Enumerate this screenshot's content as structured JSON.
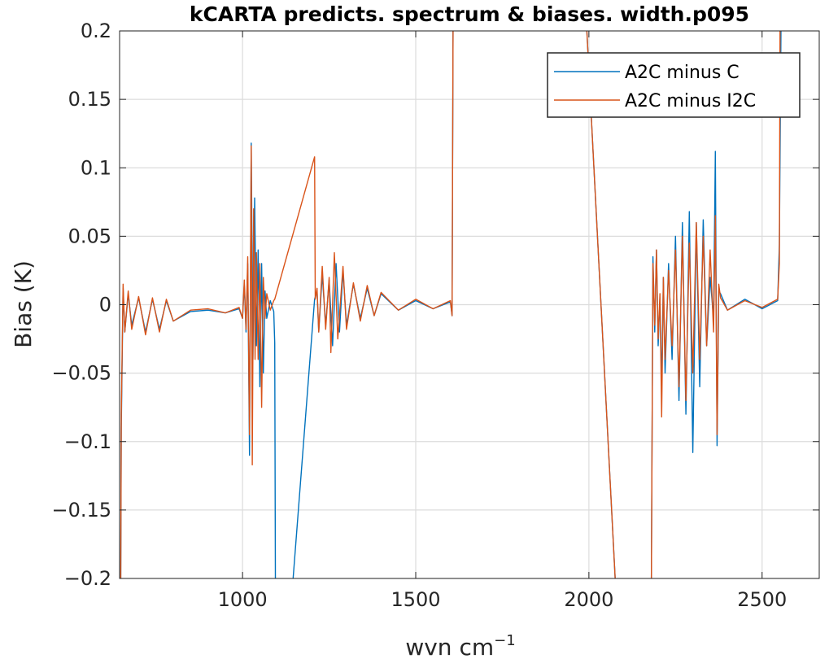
{
  "chart_data": {
    "type": "line",
    "title": "kCARTA predicts. spectrum & biases. width.p095",
    "xlabel_main": "wvn cm",
    "xlabel_sup": "−1",
    "ylabel": "Bias (K)",
    "xlim": [
      645,
      2665
    ],
    "ylim": [
      -0.2,
      0.2
    ],
    "xticks": [
      1000,
      1500,
      2000,
      2500
    ],
    "xtick_labels": [
      "1000",
      "1500",
      "2000",
      "2500"
    ],
    "yticks": [
      -0.2,
      -0.15,
      -0.1,
      -0.05,
      0,
      0.05,
      0.1,
      0.15,
      0.2
    ],
    "ytick_labels": [
      "−0.2",
      "−0.15",
      "−0.1",
      "−0.05",
      "0",
      "0.05",
      "0.1",
      "0.15",
      "0.2"
    ],
    "grid": true,
    "legend_position": "top-right",
    "series": [
      {
        "name": "A2C minus C",
        "color": "#0072BD",
        "points": [
          [
            648,
            -0.22
          ],
          [
            650,
            -0.09
          ],
          [
            655,
            0.012
          ],
          [
            660,
            -0.02
          ],
          [
            670,
            0.008
          ],
          [
            680,
            -0.015
          ],
          [
            700,
            0.005
          ],
          [
            720,
            -0.02
          ],
          [
            740,
            0.004
          ],
          [
            760,
            -0.018
          ],
          [
            780,
            0.003
          ],
          [
            800,
            -0.012
          ],
          [
            850,
            -0.005
          ],
          [
            900,
            -0.004
          ],
          [
            950,
            -0.006
          ],
          [
            990,
            -0.003
          ],
          [
            1000,
            -0.01
          ],
          [
            1005,
            0.015
          ],
          [
            1010,
            -0.02
          ],
          [
            1015,
            0.03
          ],
          [
            1020,
            -0.11
          ],
          [
            1025,
            0.118
          ],
          [
            1030,
            -0.04
          ],
          [
            1035,
            0.078
          ],
          [
            1040,
            -0.03
          ],
          [
            1045,
            0.04
          ],
          [
            1050,
            -0.06
          ],
          [
            1055,
            0.03
          ],
          [
            1060,
            -0.05
          ],
          [
            1065,
            0.01
          ],
          [
            1070,
            -0.01
          ],
          [
            1080,
            0.003
          ],
          [
            1090,
            -0.005
          ],
          [
            1093,
            -0.028
          ],
          [
            1095,
            -0.22
          ],
          [
            1140,
            -0.22
          ],
          [
            1208,
            0.004
          ],
          [
            1215,
            0.01
          ],
          [
            1220,
            -0.02
          ],
          [
            1230,
            0.022
          ],
          [
            1240,
            -0.015
          ],
          [
            1250,
            0.018
          ],
          [
            1260,
            -0.03
          ],
          [
            1270,
            0.03
          ],
          [
            1280,
            -0.02
          ],
          [
            1290,
            0.025
          ],
          [
            1300,
            -0.015
          ],
          [
            1320,
            0.015
          ],
          [
            1340,
            -0.01
          ],
          [
            1360,
            0.012
          ],
          [
            1380,
            -0.008
          ],
          [
            1400,
            0.008
          ],
          [
            1450,
            -0.004
          ],
          [
            1500,
            0.003
          ],
          [
            1550,
            -0.003
          ],
          [
            1600,
            0.002
          ],
          [
            1605,
            -0.008
          ],
          [
            1608,
            0.22
          ],
          [
            1990,
            0.22
          ],
          [
            2080,
            -0.22
          ],
          [
            2180,
            -0.22
          ],
          [
            2185,
            0.035
          ],
          [
            2190,
            -0.02
          ],
          [
            2195,
            0.04
          ],
          [
            2200,
            -0.03
          ],
          [
            2205,
            0.005
          ],
          [
            2210,
            -0.06
          ],
          [
            2215,
            0.02
          ],
          [
            2220,
            -0.05
          ],
          [
            2230,
            0.03
          ],
          [
            2240,
            -0.04
          ],
          [
            2250,
            0.05
          ],
          [
            2260,
            -0.07
          ],
          [
            2270,
            0.06
          ],
          [
            2280,
            -0.08
          ],
          [
            2290,
            0.068
          ],
          [
            2300,
            -0.108
          ],
          [
            2310,
            0.06
          ],
          [
            2320,
            -0.06
          ],
          [
            2330,
            0.062
          ],
          [
            2340,
            -0.03
          ],
          [
            2350,
            0.02
          ],
          [
            2360,
            -0.01
          ],
          [
            2365,
            0.112
          ],
          [
            2370,
            -0.103
          ],
          [
            2375,
            0.01
          ],
          [
            2380,
            0.008
          ],
          [
            2400,
            -0.004
          ],
          [
            2450,
            0.004
          ],
          [
            2500,
            -0.003
          ],
          [
            2545,
            0.003
          ],
          [
            2550,
            0.044
          ],
          [
            2555,
            0.22
          ]
        ]
      },
      {
        "name": "A2C minus I2C",
        "color": "#D95319",
        "points": [
          [
            648,
            -0.22
          ],
          [
            650,
            -0.08
          ],
          [
            655,
            0.015
          ],
          [
            660,
            -0.02
          ],
          [
            670,
            0.01
          ],
          [
            680,
            -0.018
          ],
          [
            700,
            0.006
          ],
          [
            720,
            -0.022
          ],
          [
            740,
            0.005
          ],
          [
            760,
            -0.02
          ],
          [
            780,
            0.004
          ],
          [
            800,
            -0.012
          ],
          [
            850,
            -0.004
          ],
          [
            900,
            -0.003
          ],
          [
            950,
            -0.006
          ],
          [
            990,
            -0.002
          ],
          [
            1000,
            -0.01
          ],
          [
            1005,
            0.018
          ],
          [
            1010,
            -0.018
          ],
          [
            1015,
            0.035
          ],
          [
            1020,
            -0.095
          ],
          [
            1025,
            0.116
          ],
          [
            1028,
            -0.117
          ],
          [
            1032,
            0.07
          ],
          [
            1036,
            -0.04
          ],
          [
            1040,
            0.038
          ],
          [
            1045,
            -0.04
          ],
          [
            1050,
            0.03
          ],
          [
            1055,
            -0.075
          ],
          [
            1060,
            0.02
          ],
          [
            1065,
            -0.01
          ],
          [
            1070,
            0.008
          ],
          [
            1080,
            -0.004
          ],
          [
            1090,
            0.003
          ],
          [
            1093,
            0.004
          ],
          [
            1208,
            0.108
          ],
          [
            1210,
            0.004
          ],
          [
            1215,
            0.012
          ],
          [
            1220,
            -0.02
          ],
          [
            1230,
            0.028
          ],
          [
            1240,
            -0.018
          ],
          [
            1250,
            0.02
          ],
          [
            1255,
            -0.035
          ],
          [
            1265,
            0.038
          ],
          [
            1275,
            -0.025
          ],
          [
            1290,
            0.028
          ],
          [
            1300,
            -0.018
          ],
          [
            1320,
            0.016
          ],
          [
            1340,
            -0.012
          ],
          [
            1360,
            0.014
          ],
          [
            1380,
            -0.008
          ],
          [
            1400,
            0.009
          ],
          [
            1450,
            -0.004
          ],
          [
            1500,
            0.004
          ],
          [
            1550,
            -0.003
          ],
          [
            1600,
            0.003
          ],
          [
            1605,
            -0.008
          ],
          [
            1608,
            0.22
          ],
          [
            1990,
            0.22
          ],
          [
            2080,
            -0.22
          ],
          [
            2180,
            -0.22
          ],
          [
            2185,
            0.03
          ],
          [
            2190,
            -0.015
          ],
          [
            2195,
            0.04
          ],
          [
            2200,
            -0.025
          ],
          [
            2205,
            0.008
          ],
          [
            2210,
            -0.082
          ],
          [
            2215,
            0.02
          ],
          [
            2220,
            -0.04
          ],
          [
            2230,
            0.025
          ],
          [
            2240,
            -0.03
          ],
          [
            2250,
            0.04
          ],
          [
            2260,
            -0.06
          ],
          [
            2270,
            0.05
          ],
          [
            2280,
            -0.07
          ],
          [
            2290,
            0.045
          ],
          [
            2300,
            -0.05
          ],
          [
            2310,
            0.06
          ],
          [
            2320,
            -0.04
          ],
          [
            2330,
            0.05
          ],
          [
            2340,
            -0.03
          ],
          [
            2350,
            0.04
          ],
          [
            2360,
            -0.02
          ],
          [
            2365,
            0.065
          ],
          [
            2370,
            -0.095
          ],
          [
            2375,
            0.015
          ],
          [
            2380,
            0.005
          ],
          [
            2400,
            -0.004
          ],
          [
            2450,
            0.003
          ],
          [
            2500,
            -0.002
          ],
          [
            2545,
            0.004
          ],
          [
            2550,
            0.03
          ],
          [
            2552,
            0.22
          ]
        ]
      }
    ]
  }
}
